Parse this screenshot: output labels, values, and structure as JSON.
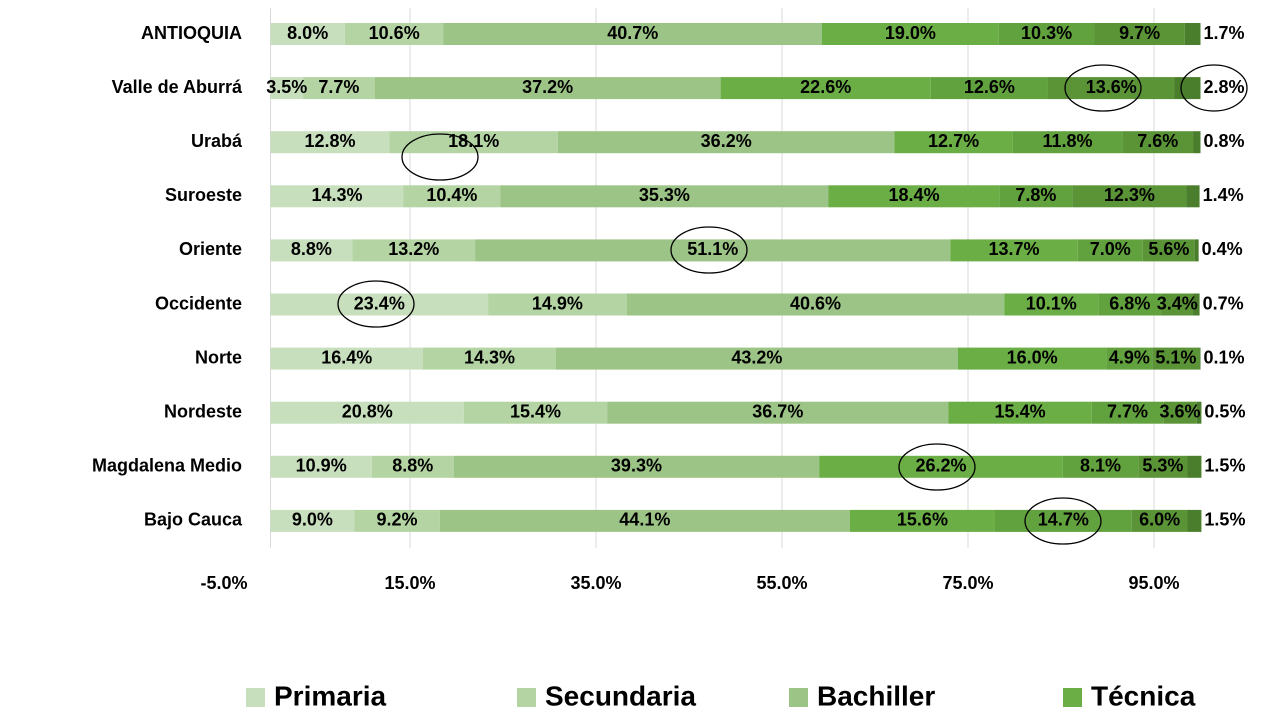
{
  "chart_data": {
    "type": "stacked-bar-horizontal",
    "categories": [
      "ANTIOQUIA",
      "Valle de Aburrá",
      "Urabá",
      "Suroeste",
      "Oriente",
      "Occidente",
      "Norte",
      "Nordeste",
      "Magdalena Medio",
      "Bajo Cauca"
    ],
    "series": [
      {
        "name": "Primaria",
        "color": "#c8dfbd",
        "values": [
          8.0,
          3.5,
          12.8,
          14.3,
          8.8,
          23.4,
          16.4,
          20.8,
          10.9,
          9.0
        ],
        "value_labels": [
          "8.0%",
          "3.5%",
          "12.8%",
          "14.3%",
          "8.8%",
          "23.4%",
          "16.4%",
          "20.8%",
          "10.9%",
          "9.0%"
        ]
      },
      {
        "name": "Secundaria",
        "color": "#b4d4a4",
        "values": [
          10.6,
          7.7,
          18.1,
          10.4,
          13.2,
          14.9,
          14.3,
          15.4,
          8.8,
          9.2
        ],
        "value_labels": [
          "10.6%",
          "7.7%",
          "18.1%",
          "10.4%",
          "13.2%",
          "14.9%",
          "14.3%",
          "15.4%",
          "8.8%",
          "9.2%"
        ]
      },
      {
        "name": "Bachiller",
        "color": "#9cc486",
        "values": [
          40.7,
          37.2,
          36.2,
          35.3,
          51.1,
          40.6,
          43.2,
          36.7,
          39.3,
          44.1
        ],
        "value_labels": [
          "40.7%",
          "37.2%",
          "36.2%",
          "35.3%",
          "51.1%",
          "40.6%",
          "43.2%",
          "36.7%",
          "39.3%",
          "44.1%"
        ]
      },
      {
        "name": "Técnica",
        "color": "#6aae45",
        "values": [
          19.0,
          22.6,
          12.7,
          18.4,
          13.7,
          10.1,
          16.0,
          15.4,
          26.2,
          15.6
        ],
        "value_labels": [
          "19.0%",
          "22.6%",
          "12.7%",
          "18.4%",
          "13.7%",
          "10.1%",
          "16.0%",
          "15.4%",
          "26.2%",
          "15.6%"
        ]
      },
      {
        "color": "#62a23e",
        "values": [
          10.3,
          12.6,
          11.8,
          7.8,
          7.0,
          6.8,
          4.9,
          7.7,
          8.1,
          14.7
        ],
        "value_labels": [
          "10.3%",
          "12.6%",
          "11.8%",
          "7.8%",
          "7.0%",
          "6.8%",
          "4.9%",
          "7.7%",
          "8.1%",
          "14.7%"
        ]
      },
      {
        "color": "#5a9437",
        "values": [
          9.7,
          13.6,
          7.6,
          12.3,
          5.6,
          3.4,
          5.1,
          3.6,
          5.3,
          6.0
        ],
        "value_labels": [
          "9.7%",
          "13.6%",
          "7.6%",
          "12.3%",
          "5.6%",
          "3.4%",
          "5.1%",
          "3.6%",
          "5.3%",
          "6.0%"
        ]
      },
      {
        "color": "#4a7d2c",
        "values": [
          1.7,
          2.8,
          0.8,
          1.4,
          0.4,
          0.7,
          0.1,
          0.5,
          1.5,
          1.5
        ],
        "value_labels": [
          "1.7%",
          "2.8%",
          "0.8%",
          "1.4%",
          "0.4%",
          "0.7%",
          "0.1%",
          "0.5%",
          "1.5%",
          "1.5%"
        ]
      }
    ],
    "xlim": [
      -5,
      105
    ],
    "xticks": [
      {
        "value": -5,
        "label": "-5.0%"
      },
      {
        "value": 15,
        "label": "15.0%"
      },
      {
        "value": 35,
        "label": "35.0%"
      },
      {
        "value": 55,
        "label": "55.0%"
      },
      {
        "value": 75,
        "label": "75.0%"
      },
      {
        "value": 95,
        "label": "95.0%"
      }
    ],
    "grid": true,
    "legend": "bottom"
  }
}
